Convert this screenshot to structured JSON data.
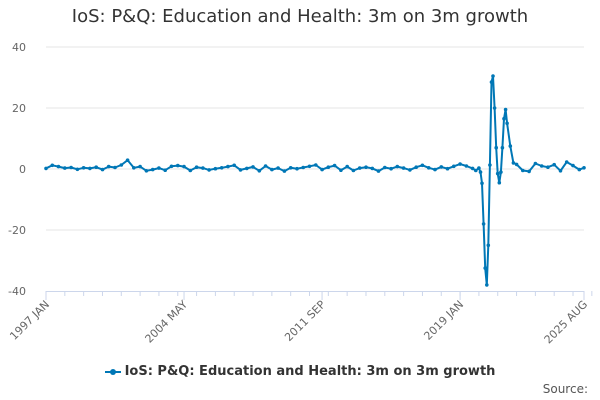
{
  "title": "IoS: P&Q: Education and Health: 3m on 3m growth",
  "source_label": "Source:",
  "colors": {
    "series": "#0077b6",
    "grid": "#e6e6e6",
    "axis": "#ccd6eb",
    "text": "#666666"
  },
  "chart_data": {
    "type": "line",
    "title": "IoS: P&Q: Education and Health: 3m on 3m growth",
    "xlabel": "",
    "ylabel": "",
    "ylim": [
      -40,
      40
    ],
    "yticks": [
      40,
      20,
      0,
      -20,
      -40
    ],
    "xticks": [
      "1997 JAN",
      "2004 MAY",
      "2011 SEP",
      "2019 JAN",
      "2025 AUG"
    ],
    "grid": true,
    "legend": "bottom",
    "series": [
      {
        "name": "IoS: P&Q: Education and Health: 3m on 3m growth",
        "x": [
          "1997 JAN",
          "1997 MAY",
          "1997 SEP",
          "1998 JAN",
          "1998 MAY",
          "1998 SEP",
          "1999 JAN",
          "1999 MAY",
          "1999 SEP",
          "2000 JAN",
          "2000 MAY",
          "2000 SEP",
          "2001 JAN",
          "2001 MAY",
          "2001 SEP",
          "2002 JAN",
          "2002 MAY",
          "2002 SEP",
          "2003 JAN",
          "2003 MAY",
          "2003 SEP",
          "2004 JAN",
          "2004 MAY",
          "2004 SEP",
          "2005 JAN",
          "2005 MAY",
          "2005 SEP",
          "2006 JAN",
          "2006 MAY",
          "2006 SEP",
          "2007 JAN",
          "2007 MAY",
          "2007 SEP",
          "2008 JAN",
          "2008 MAY",
          "2008 SEP",
          "2009 JAN",
          "2009 MAY",
          "2009 SEP",
          "2010 JAN",
          "2010 MAY",
          "2010 SEP",
          "2011 JAN",
          "2011 MAY",
          "2011 SEP",
          "2012 JAN",
          "2012 MAY",
          "2012 SEP",
          "2013 JAN",
          "2013 MAY",
          "2013 SEP",
          "2014 JAN",
          "2014 MAY",
          "2014 SEP",
          "2015 JAN",
          "2015 MAY",
          "2015 SEP",
          "2016 JAN",
          "2016 MAY",
          "2016 SEP",
          "2017 JAN",
          "2017 MAY",
          "2017 SEP",
          "2018 JAN",
          "2018 MAY",
          "2018 SEP",
          "2019 JAN",
          "2019 MAY",
          "2019 SEP",
          "2019 NOV",
          "2020 JAN",
          "2020 FEB",
          "2020 MAR",
          "2020 APR",
          "2020 MAY",
          "2020 JUN",
          "2020 JUL",
          "2020 AUG",
          "2020 SEP",
          "2020 OCT",
          "2020 NOV",
          "2020 DEC",
          "2021 JAN",
          "2021 FEB",
          "2021 MAR",
          "2021 APR",
          "2021 MAY",
          "2021 JUN",
          "2021 JUL",
          "2021 SEP",
          "2021 NOV",
          "2022 JAN",
          "2022 MAY",
          "2022 SEP",
          "2023 JAN",
          "2023 MAY",
          "2023 SEP",
          "2024 JAN",
          "2024 MAY",
          "2024 SEP",
          "2025 JAN",
          "2025 MAY",
          "2025 AUG"
        ],
        "y": [
          0.2,
          1.2,
          0.8,
          0.3,
          0.5,
          -0.1,
          0.4,
          0.2,
          0.6,
          -0.2,
          0.8,
          0.5,
          1.3,
          2.9,
          0.4,
          0.8,
          -0.6,
          -0.2,
          0.3,
          -0.4,
          0.9,
          1.1,
          0.8,
          -0.5,
          0.6,
          0.3,
          -0.3,
          0.1,
          0.4,
          0.8,
          1.2,
          -0.3,
          0.2,
          0.7,
          -0.6,
          1.0,
          -0.2,
          0.3,
          -0.7,
          0.4,
          0.1,
          0.5,
          0.9,
          1.3,
          -0.2,
          0.6,
          1.1,
          -0.4,
          0.8,
          -0.5,
          0.3,
          0.6,
          0.2,
          -0.7,
          0.5,
          0.1,
          0.8,
          0.3,
          -0.3,
          0.6,
          1.2,
          0.4,
          -0.2,
          0.7,
          0.1,
          0.9,
          1.6,
          1.0,
          0.2,
          -0.5,
          0.3,
          -1.0,
          -4.7,
          -18.0,
          -32.5,
          -38.0,
          -25.0,
          1.3,
          28.5,
          30.5,
          20.0,
          7.0,
          -1.5,
          -4.5,
          -1.0,
          7.0,
          16.5,
          19.5,
          15.0,
          7.5,
          2.0,
          1.5,
          -0.5,
          -0.8,
          1.8,
          1.0,
          0.6,
          1.4,
          -0.6,
          2.3,
          1.1,
          -0.2,
          0.4
        ]
      }
    ]
  }
}
